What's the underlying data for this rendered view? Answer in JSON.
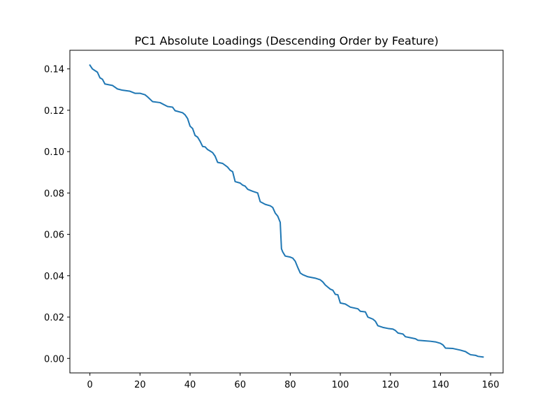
{
  "chart_data": {
    "type": "line",
    "title": "PC1 Absolute Loadings (Descending Order by Feature)",
    "xlabel": "",
    "ylabel": "",
    "xlim": [
      -8,
      165
    ],
    "ylim": [
      -0.007,
      0.149
    ],
    "xticks": [
      0,
      20,
      40,
      60,
      80,
      100,
      120,
      140,
      160
    ],
    "yticks": [
      0.0,
      0.02,
      0.04,
      0.06,
      0.08,
      0.1,
      0.12,
      0.14
    ],
    "ytick_labels": [
      "0.00",
      "0.02",
      "0.04",
      "0.06",
      "0.08",
      "0.10",
      "0.12",
      "0.14"
    ],
    "grid": false,
    "legend": "none",
    "series": [
      {
        "color": "#1f77b4",
        "points": [
          [
            0,
            0.1418
          ],
          [
            1,
            0.14
          ],
          [
            3,
            0.1384
          ],
          [
            4,
            0.1357
          ],
          [
            5,
            0.135
          ],
          [
            6,
            0.1327
          ],
          [
            9,
            0.132
          ],
          [
            11,
            0.1303
          ],
          [
            13,
            0.1297
          ],
          [
            16,
            0.1292
          ],
          [
            18,
            0.1282
          ],
          [
            20,
            0.1282
          ],
          [
            22,
            0.1275
          ],
          [
            23,
            0.1265
          ],
          [
            25,
            0.1242
          ],
          [
            28,
            0.1237
          ],
          [
            31,
            0.1218
          ],
          [
            33,
            0.1215
          ],
          [
            34,
            0.1198
          ],
          [
            37,
            0.1188
          ],
          [
            38,
            0.1178
          ],
          [
            39,
            0.116
          ],
          [
            40,
            0.1123
          ],
          [
            41,
            0.1112
          ],
          [
            42,
            0.1078
          ],
          [
            43,
            0.107
          ],
          [
            44,
            0.105
          ],
          [
            45,
            0.1025
          ],
          [
            46,
            0.1023
          ],
          [
            47,
            0.101
          ],
          [
            48,
            0.1003
          ],
          [
            49,
            0.0995
          ],
          [
            50,
            0.0978
          ],
          [
            51,
            0.0948
          ],
          [
            53,
            0.0943
          ],
          [
            55,
            0.0925
          ],
          [
            56,
            0.091
          ],
          [
            57,
            0.0903
          ],
          [
            58,
            0.0855
          ],
          [
            60,
            0.0848
          ],
          [
            61,
            0.0838
          ],
          [
            62,
            0.0833
          ],
          [
            63,
            0.0818
          ],
          [
            65,
            0.0808
          ],
          [
            67,
            0.08
          ],
          [
            68,
            0.0758
          ],
          [
            70,
            0.0745
          ],
          [
            72,
            0.0738
          ],
          [
            73,
            0.073
          ],
          [
            74,
            0.0703
          ],
          [
            75,
            0.0688
          ],
          [
            76,
            0.0658
          ],
          [
            76.5,
            0.053
          ],
          [
            77,
            0.0515
          ],
          [
            78,
            0.0495
          ],
          [
            80,
            0.049
          ],
          [
            81,
            0.0485
          ],
          [
            82,
            0.047
          ],
          [
            83,
            0.044
          ],
          [
            84,
            0.0413
          ],
          [
            85,
            0.0405
          ],
          [
            86,
            0.04
          ],
          [
            87,
            0.0395
          ],
          [
            90,
            0.0388
          ],
          [
            92,
            0.038
          ],
          [
            93,
            0.037
          ],
          [
            94,
            0.0355
          ],
          [
            95,
            0.0345
          ],
          [
            96,
            0.0335
          ],
          [
            97,
            0.033
          ],
          [
            98,
            0.031
          ],
          [
            99,
            0.0308
          ],
          [
            100,
            0.0268
          ],
          [
            102,
            0.0263
          ],
          [
            104,
            0.0248
          ],
          [
            107,
            0.024
          ],
          [
            108,
            0.0228
          ],
          [
            110,
            0.0225
          ],
          [
            111,
            0.02
          ],
          [
            113,
            0.019
          ],
          [
            114,
            0.018
          ],
          [
            115,
            0.0158
          ],
          [
            117,
            0.015
          ],
          [
            119,
            0.0145
          ],
          [
            121,
            0.0142
          ],
          [
            122,
            0.0135
          ],
          [
            123,
            0.0123
          ],
          [
            125,
            0.0118
          ],
          [
            126,
            0.0105
          ],
          [
            128,
            0.01
          ],
          [
            130,
            0.0095
          ],
          [
            131,
            0.0088
          ],
          [
            134,
            0.0085
          ],
          [
            136,
            0.0083
          ],
          [
            138,
            0.008
          ],
          [
            140,
            0.0073
          ],
          [
            141,
            0.0065
          ],
          [
            142,
            0.005
          ],
          [
            145,
            0.0048
          ],
          [
            148,
            0.004
          ],
          [
            150,
            0.0033
          ],
          [
            151,
            0.0025
          ],
          [
            152,
            0.0018
          ],
          [
            154,
            0.0015
          ],
          [
            155,
            0.001
          ],
          [
            157,
            0.0007
          ]
        ]
      }
    ]
  }
}
